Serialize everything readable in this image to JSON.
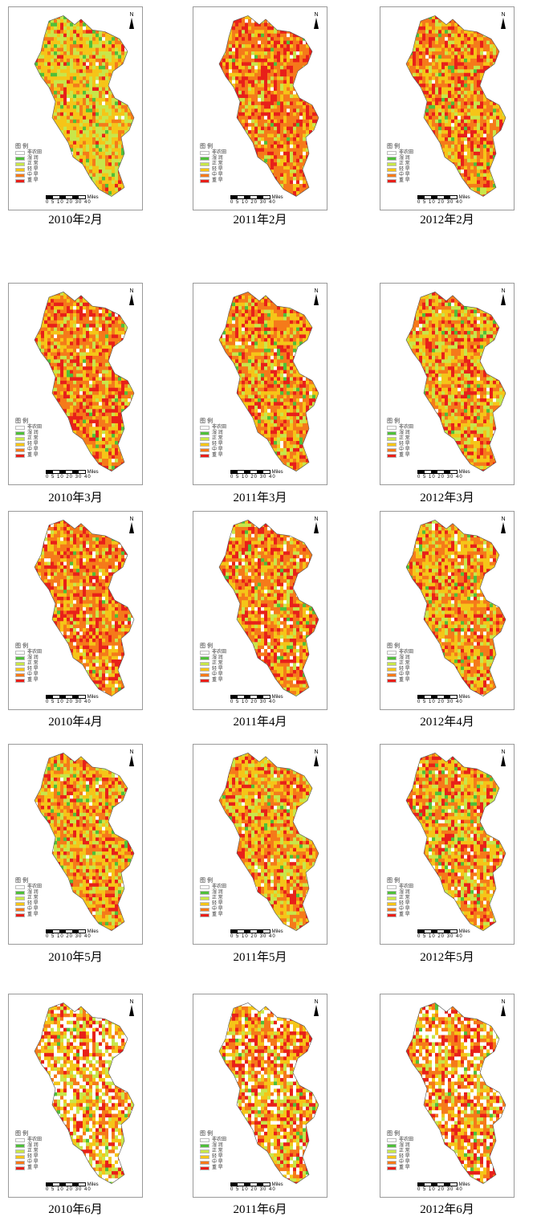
{
  "legend": {
    "title": "图 例",
    "items": [
      {
        "label": "非农田",
        "color": "#ffffff"
      },
      {
        "label": "湿 润",
        "color": "#4fbf3a"
      },
      {
        "label": "正 常",
        "color": "#c8e64a"
      },
      {
        "label": "轻 旱",
        "color": "#f5c518"
      },
      {
        "label": "中 旱",
        "color": "#f57a1a"
      },
      {
        "label": "重 旱",
        "color": "#e8201a"
      }
    ]
  },
  "north_label": "N",
  "scale": {
    "ticks": "0 5 10  20  30  40",
    "unit": "Miles"
  },
  "maps": [
    {
      "caption": "2010年2月",
      "mix": [
        0.05,
        0.3,
        0.4,
        0.18,
        0.07
      ],
      "white": 0.02
    },
    {
      "caption": "2011年2月",
      "mix": [
        0.02,
        0.08,
        0.2,
        0.45,
        0.25
      ],
      "white": 0.04
    },
    {
      "caption": "2012年2月",
      "mix": [
        0.03,
        0.12,
        0.3,
        0.35,
        0.2
      ],
      "white": 0.02
    },
    {
      "caption": "2010年3月",
      "mix": [
        0.02,
        0.1,
        0.25,
        0.4,
        0.23
      ],
      "white": 0.02
    },
    {
      "caption": "2011年3月",
      "mix": [
        0.04,
        0.12,
        0.28,
        0.38,
        0.18
      ],
      "white": 0.02
    },
    {
      "caption": "2012年3月",
      "mix": [
        0.03,
        0.2,
        0.3,
        0.3,
        0.17
      ],
      "white": 0.02
    },
    {
      "caption": "2010年4月",
      "mix": [
        0.02,
        0.08,
        0.22,
        0.43,
        0.25
      ],
      "white": 0.05
    },
    {
      "caption": "2011年4月",
      "mix": [
        0.02,
        0.1,
        0.25,
        0.4,
        0.23
      ],
      "white": 0.05
    },
    {
      "caption": "2012年4月",
      "mix": [
        0.04,
        0.14,
        0.3,
        0.35,
        0.17
      ],
      "white": 0.03
    },
    {
      "caption": "2010年5月",
      "mix": [
        0.04,
        0.18,
        0.35,
        0.28,
        0.15
      ],
      "white": 0.02
    },
    {
      "caption": "2011年5月",
      "mix": [
        0.02,
        0.18,
        0.32,
        0.3,
        0.18
      ],
      "white": 0.02
    },
    {
      "caption": "2012年5月",
      "mix": [
        0.06,
        0.18,
        0.3,
        0.28,
        0.18
      ],
      "white": 0.04
    },
    {
      "caption": "2010年6月",
      "mix": [
        0.04,
        0.2,
        0.35,
        0.25,
        0.16
      ],
      "white": 0.3
    },
    {
      "caption": "2011年6月",
      "mix": [
        0.03,
        0.15,
        0.3,
        0.3,
        0.22
      ],
      "white": 0.18
    },
    {
      "caption": "2012年6月",
      "mix": [
        0.03,
        0.12,
        0.28,
        0.35,
        0.22
      ],
      "white": 0.25
    }
  ]
}
